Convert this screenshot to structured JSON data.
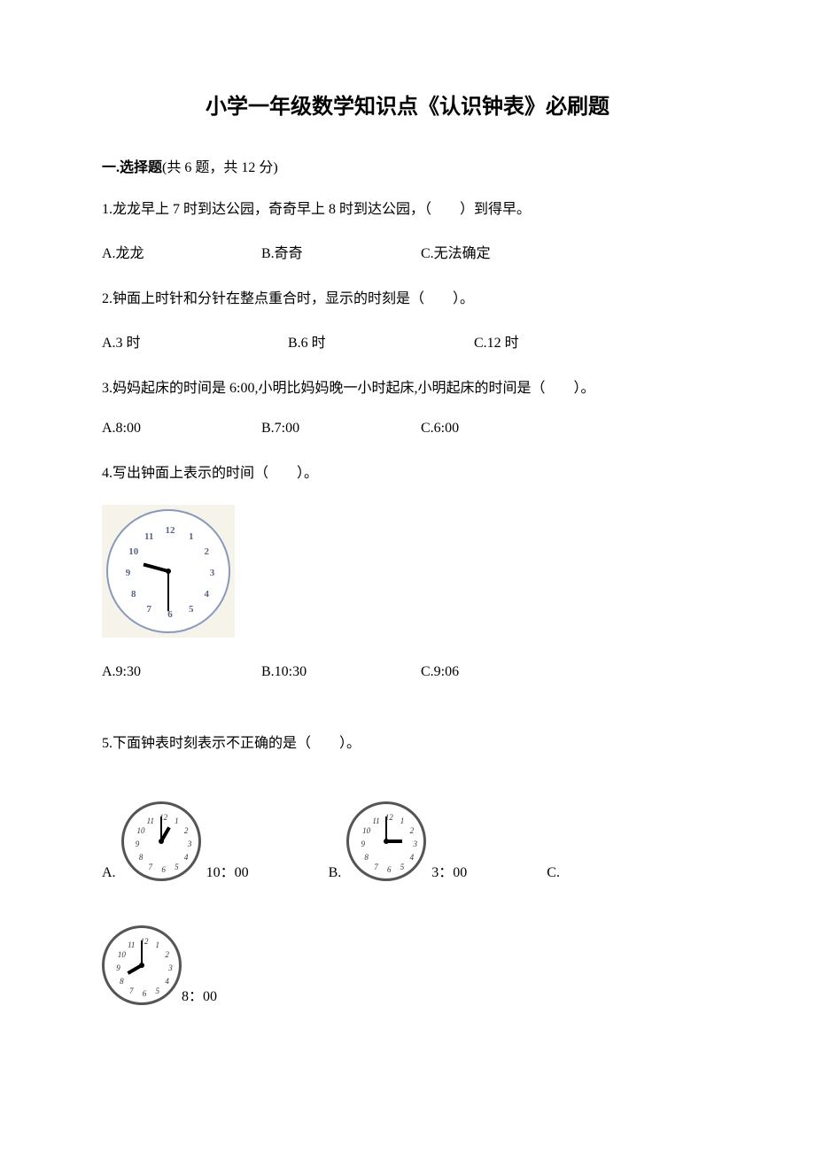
{
  "title": "小学一年级数学知识点《认识钟表》必刷题",
  "section": {
    "label": "一.选择题",
    "count_label": "(共 6 题，共 12 分)"
  },
  "q1": {
    "text": "1.龙龙早上 7 时到达公园，奇奇早上 8 时到达公园，（　　）到得早。",
    "a": "A.龙龙",
    "b": "B.奇奇",
    "c": "C.无法确定"
  },
  "q2": {
    "text": "2.钟面上时针和分针在整点重合时，显示的时刻是（　　）。",
    "a": "A.3 时",
    "b": "B.6 时",
    "c": "C.12 时"
  },
  "q3": {
    "text": "3.妈妈起床的时间是 6:00,小明比妈妈晚一小时起床,小明起床的时间是（　　）。",
    "a": "A.8:00",
    "b": "B.7:00",
    "c": "C.6:00"
  },
  "q4": {
    "text": "4.写出钟面上表示的时间（　　）。",
    "a": "A.9:30",
    "b": "B.10:30",
    "c": "C.9:06",
    "clock": {
      "hour_angle": 285,
      "minute_angle": 180,
      "bg": "#f5f3ea",
      "border": "#8899bb"
    }
  },
  "q5": {
    "text": "5.下面钟表时刻表示不正确的是（　　）。",
    "a_letter": "A.",
    "a_text": "10：00",
    "a_clock": {
      "hour_angle": 30,
      "minute_angle": 0
    },
    "b_letter": "B.",
    "b_text": "3：00",
    "b_clock": {
      "hour_angle": 90,
      "minute_angle": 0
    },
    "c_letter": "C.",
    "c_text": "8：00",
    "c_clock": {
      "hour_angle": 240,
      "minute_angle": 0
    }
  },
  "clock_numbers": [
    "12",
    "1",
    "2",
    "3",
    "4",
    "5",
    "6",
    "7",
    "8",
    "9",
    "10",
    "11"
  ]
}
